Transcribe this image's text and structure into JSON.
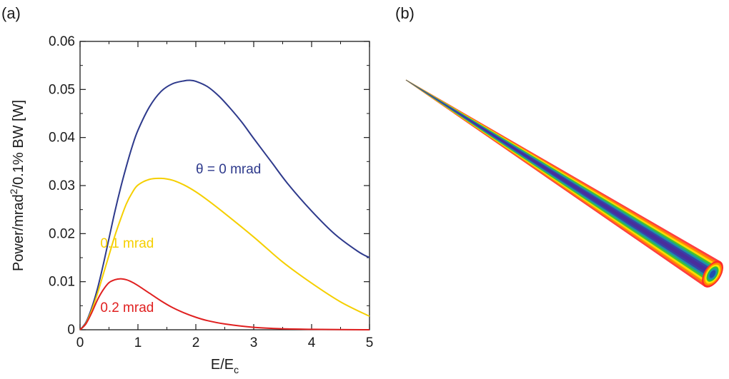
{
  "panels": {
    "a": "(a)",
    "b": "(b)"
  },
  "chart_data": {
    "type": "line",
    "xlabel": "E/E",
    "xlabel_sub": "c",
    "ylabel_pre": "Power/mrad",
    "ylabel_sup": "2",
    "ylabel_post": "/0.1% BW [W]",
    "xlim": [
      0,
      5
    ],
    "ylim": [
      0,
      0.06
    ],
    "xticks": [
      "0",
      "1",
      "2",
      "3",
      "4",
      "5"
    ],
    "yticks": [
      "0",
      "0.01",
      "0.02",
      "0.03",
      "0.04",
      "0.05",
      "0.06"
    ],
    "grid": false,
    "series": [
      {
        "name": "θ = 0 mrad",
        "color": "#2e3a8c",
        "x": [
          0,
          0.1,
          0.2,
          0.3,
          0.4,
          0.5,
          0.6,
          0.7,
          0.8,
          0.9,
          1.0,
          1.2,
          1.4,
          1.6,
          1.8,
          1.9,
          2.0,
          2.2,
          2.4,
          2.6,
          2.8,
          3.0,
          3.3,
          3.6,
          4.0,
          4.4,
          4.8,
          5.0
        ],
        "y": [
          0,
          0.0015,
          0.0045,
          0.0085,
          0.0135,
          0.019,
          0.0245,
          0.0295,
          0.034,
          0.0381,
          0.0415,
          0.0464,
          0.0496,
          0.0512,
          0.0518,
          0.0519,
          0.0517,
          0.0506,
          0.0486,
          0.046,
          0.0431,
          0.0398,
          0.035,
          0.0302,
          0.0247,
          0.0199,
          0.0163,
          0.015
        ]
      },
      {
        "name": "0.1 mrad",
        "color": "#f5cf00",
        "x": [
          0,
          0.1,
          0.2,
          0.3,
          0.4,
          0.5,
          0.6,
          0.7,
          0.8,
          0.9,
          1.0,
          1.2,
          1.4,
          1.6,
          1.8,
          2.0,
          2.2,
          2.5,
          3.0,
          3.5,
          4.0,
          4.5,
          5.0
        ],
        "y": [
          0,
          0.0013,
          0.004,
          0.0075,
          0.0115,
          0.0155,
          0.0195,
          0.023,
          0.0262,
          0.0285,
          0.0301,
          0.0313,
          0.0315,
          0.0311,
          0.0301,
          0.0287,
          0.027,
          0.0242,
          0.0193,
          0.0141,
          0.0097,
          0.0058,
          0.0028
        ]
      },
      {
        "name": "0.2 mrad",
        "color": "#e02020",
        "x": [
          0,
          0.1,
          0.2,
          0.3,
          0.4,
          0.5,
          0.6,
          0.7,
          0.8,
          0.9,
          1.0,
          1.2,
          1.4,
          1.6,
          1.8,
          2.0,
          2.2,
          2.5,
          3.0,
          3.5,
          4.0,
          4.5,
          5.0
        ],
        "y": [
          0,
          0.0012,
          0.0035,
          0.0062,
          0.0083,
          0.0098,
          0.0104,
          0.0106,
          0.0104,
          0.0099,
          0.0092,
          0.0076,
          0.006,
          0.0046,
          0.0035,
          0.0026,
          0.0019,
          0.0012,
          0.0005,
          0.0002,
          0.0001,
          3e-05,
          0
        ]
      }
    ],
    "annotations": [
      {
        "text": "θ = 0 mrad",
        "series": 0
      },
      {
        "text": "0.1 mrad",
        "series": 1
      },
      {
        "text": "0.2 mrad",
        "series": 2
      }
    ]
  },
  "beam_colors": [
    "#ff2a2a",
    "#ff8c00",
    "#ffe600",
    "#2fbf3a",
    "#1a8fb3",
    "#3b3aa8",
    "#4b2c9a"
  ]
}
